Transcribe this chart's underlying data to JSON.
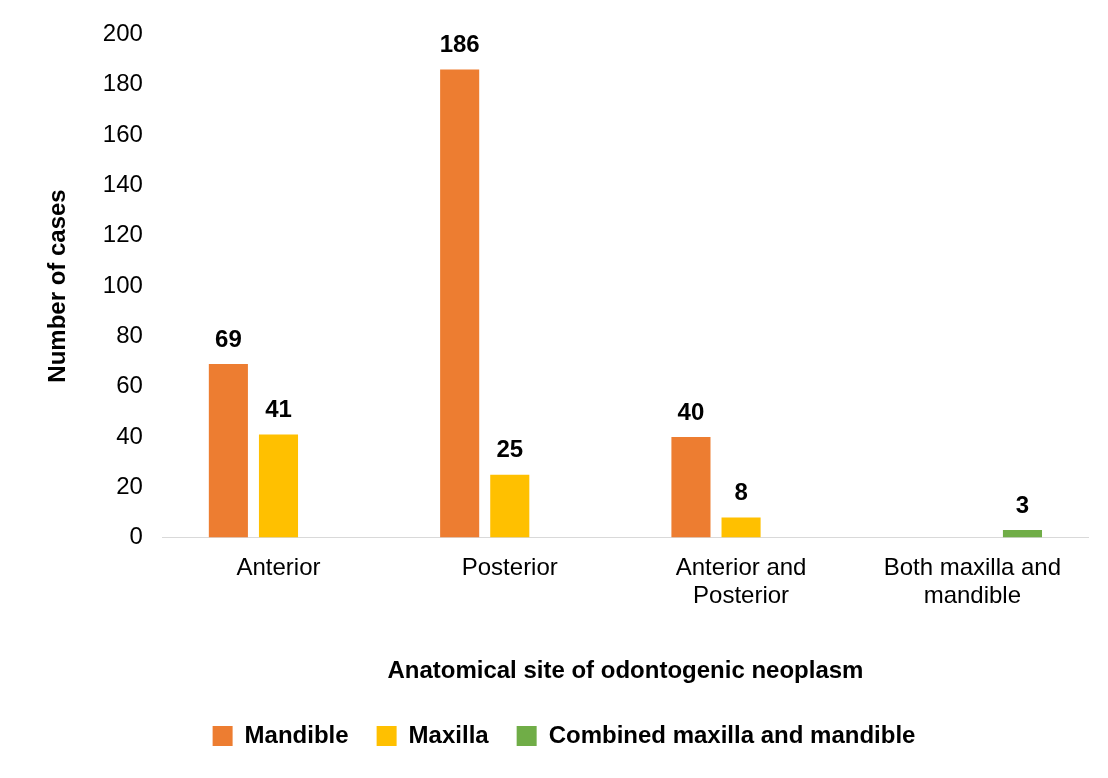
{
  "chart_data": {
    "type": "bar",
    "xlabel": "Anatomical site of odontogenic neoplasm",
    "ylabel": "Number of cases",
    "categories": [
      "Anterior",
      "Posterior",
      "Anterior and Posterior",
      "Both maxilla and mandible"
    ],
    "series": [
      {
        "name": "Mandible",
        "color": "#ed7d31",
        "values": [
          69,
          186,
          40,
          null
        ]
      },
      {
        "name": "Maxilla",
        "color": "#ffc000",
        "values": [
          41,
          25,
          8,
          null
        ]
      },
      {
        "name": "Combined maxilla and mandible",
        "color": "#70ad47",
        "values": [
          null,
          null,
          null,
          3
        ]
      }
    ],
    "ylim": [
      0,
      200
    ],
    "yticks": [
      0,
      20,
      40,
      60,
      80,
      100,
      120,
      140,
      160,
      180,
      200
    ],
    "grid": false,
    "legend": "bottom",
    "data_labels": true
  }
}
